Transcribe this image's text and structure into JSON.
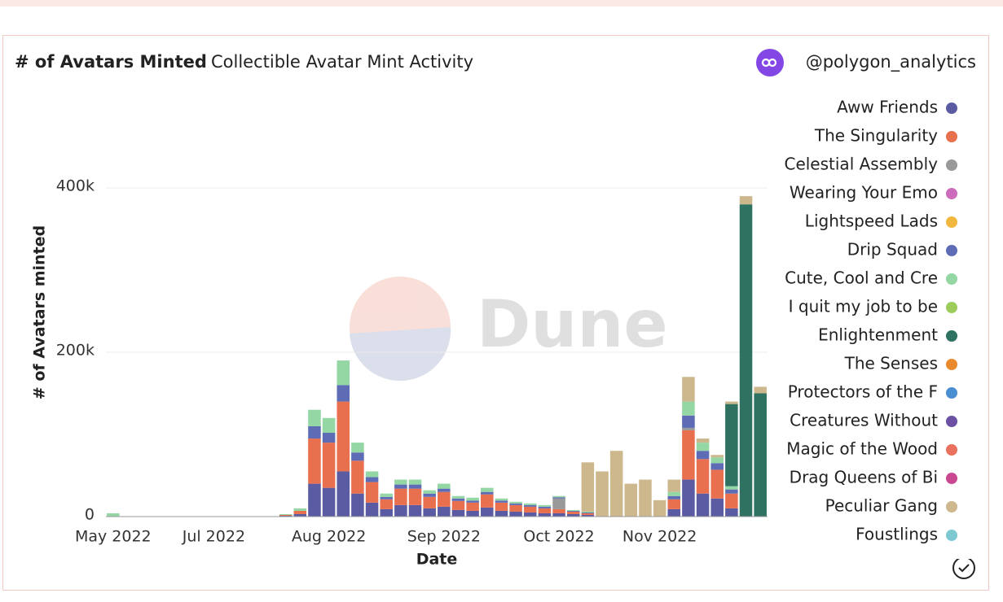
{
  "chart_data": {
    "type": "stacked_bar",
    "title": "# of Avatars Minted",
    "subtitle": "Collectible Avatar Mint Activity",
    "author": "@polygon_analytics",
    "watermark": "Dune",
    "x_label": "Date",
    "y_label": "# of Avatars minted",
    "categories": [
      "May 2022",
      null,
      null,
      null,
      null,
      null,
      null,
      "Jul 2022",
      null,
      null,
      null,
      null,
      null,
      null,
      null,
      "Aug 2022",
      null,
      null,
      null,
      null,
      null,
      null,
      null,
      "Sep 2022",
      null,
      null,
      null,
      null,
      null,
      null,
      null,
      "Oct 2022",
      null,
      null,
      null,
      null,
      null,
      null,
      "Nov 2022",
      null,
      null,
      null,
      null,
      null,
      null,
      null
    ],
    "ylim": [
      0,
      500000
    ],
    "yticks": [
      {
        "value": 0,
        "label": "0"
      },
      {
        "value": 200000,
        "label": "200k"
      },
      {
        "value": 400000,
        "label": "400k"
      }
    ],
    "grid": true,
    "legend": "right",
    "series": [
      {
        "name": "Aww Friends",
        "color": "#5b5ba3",
        "values": [
          0,
          0,
          0,
          0,
          0,
          0,
          0,
          0,
          0,
          0,
          0,
          0,
          1000,
          3000,
          40000,
          35000,
          55000,
          28000,
          17000,
          9000,
          14000,
          14000,
          10000,
          12000,
          8000,
          7000,
          11000,
          7000,
          6000,
          5000,
          4000,
          4000,
          3000,
          2000,
          0,
          0,
          0,
          0,
          0,
          9000,
          45000,
          28000,
          22000,
          10000,
          0,
          0
        ]
      },
      {
        "name": "The Singularity",
        "color": "#e8704f",
        "values": [
          0,
          0,
          0,
          0,
          0,
          0,
          0,
          0,
          0,
          0,
          0,
          0,
          1000,
          4000,
          55000,
          55000,
          85000,
          40000,
          25000,
          12000,
          20000,
          20000,
          14000,
          18000,
          11000,
          10000,
          16000,
          10000,
          8000,
          7000,
          6000,
          5000,
          3000,
          2000,
          0,
          0,
          0,
          0,
          0,
          12000,
          60000,
          42000,
          35000,
          18000,
          0,
          0
        ]
      },
      {
        "name": "Celestial Assembly",
        "color": "#999999",
        "values": [
          0,
          0,
          0,
          0,
          0,
          0,
          0,
          0,
          0,
          0,
          0,
          0,
          0,
          0,
          0,
          0,
          0,
          0,
          0,
          0,
          0,
          0,
          0,
          0,
          0,
          0,
          0,
          0,
          0,
          0,
          0,
          13000,
          0,
          0,
          0,
          0,
          0,
          0,
          0,
          0,
          3000,
          0,
          0,
          0,
          0,
          0
        ]
      },
      {
        "name": "Wearing Your Emo",
        "color": "#cc6cbd",
        "values": [
          0,
          0,
          0,
          0,
          0,
          0,
          0,
          0,
          0,
          0,
          0,
          0,
          0,
          0,
          0,
          0,
          0,
          0,
          0,
          0,
          0,
          0,
          0,
          0,
          0,
          0,
          0,
          0,
          0,
          0,
          0,
          0,
          0,
          0,
          0,
          0,
          0,
          0,
          0,
          0,
          0,
          0,
          0,
          0,
          0,
          0
        ]
      },
      {
        "name": "Lightspeed Lads",
        "color": "#f0b83f",
        "values": [
          0,
          0,
          0,
          0,
          0,
          0,
          0,
          0,
          0,
          0,
          0,
          0,
          0,
          0,
          0,
          0,
          0,
          0,
          0,
          0,
          0,
          0,
          0,
          0,
          0,
          0,
          0,
          0,
          0,
          0,
          0,
          0,
          0,
          0,
          0,
          0,
          0,
          0,
          0,
          0,
          0,
          0,
          0,
          0,
          0,
          0
        ]
      },
      {
        "name": "Drip Squad",
        "color": "#5d6cb5",
        "values": [
          0,
          0,
          0,
          0,
          0,
          0,
          0,
          0,
          0,
          0,
          0,
          0,
          0,
          0,
          15000,
          12000,
          20000,
          10000,
          6000,
          3000,
          5000,
          5000,
          4000,
          4000,
          3000,
          2500,
          3000,
          2500,
          2000,
          2000,
          2000,
          1500,
          1000,
          1000,
          0,
          0,
          0,
          0,
          0,
          4000,
          15000,
          10000,
          8000,
          5000,
          0,
          0
        ]
      },
      {
        "name": "Cute, Cool and Cre",
        "color": "#94d6a4",
        "values": [
          4000,
          0,
          0,
          0,
          0,
          0,
          0,
          0,
          0,
          0,
          0,
          0,
          1000,
          3000,
          20000,
          18000,
          30000,
          12000,
          7000,
          4000,
          6000,
          6000,
          4000,
          6000,
          3000,
          3500,
          5000,
          2500,
          2000,
          2000,
          2000,
          1500,
          1000,
          1000,
          0,
          0,
          0,
          0,
          0,
          5000,
          17000,
          10000,
          7000,
          4000,
          0,
          0
        ]
      },
      {
        "name": "I quit my job to be",
        "color": "#9ccd5b",
        "values": [
          0,
          0,
          0,
          0,
          0,
          0,
          0,
          0,
          0,
          0,
          0,
          0,
          0,
          0,
          0,
          0,
          0,
          0,
          0,
          0,
          0,
          0,
          0,
          0,
          0,
          0,
          0,
          0,
          0,
          0,
          0,
          0,
          0,
          0,
          0,
          0,
          0,
          0,
          0,
          0,
          0,
          0,
          0,
          0,
          0,
          0
        ]
      },
      {
        "name": "Enlightenment",
        "color": "#2f7262",
        "values": [
          0,
          0,
          0,
          0,
          0,
          0,
          0,
          0,
          0,
          0,
          0,
          0,
          0,
          0,
          0,
          0,
          0,
          0,
          0,
          0,
          0,
          0,
          0,
          0,
          0,
          0,
          0,
          0,
          0,
          0,
          0,
          0,
          0,
          0,
          0,
          0,
          0,
          0,
          0,
          0,
          0,
          0,
          0,
          100000,
          380000,
          150000
        ]
      },
      {
        "name": "The Senses",
        "color": "#e98a2e",
        "values": [
          0,
          0,
          0,
          0,
          0,
          0,
          0,
          0,
          0,
          0,
          0,
          0,
          0,
          0,
          0,
          0,
          0,
          0,
          0,
          0,
          0,
          0,
          0,
          0,
          0,
          0,
          0,
          0,
          0,
          0,
          0,
          0,
          0,
          0,
          0,
          0,
          0,
          0,
          0,
          0,
          0,
          0,
          0,
          0,
          0,
          0
        ]
      },
      {
        "name": "Protectors of the F",
        "color": "#4a8fd2",
        "values": [
          0,
          0,
          0,
          0,
          0,
          0,
          0,
          0,
          0,
          0,
          0,
          0,
          0,
          0,
          0,
          0,
          0,
          0,
          0,
          0,
          0,
          0,
          0,
          0,
          0,
          0,
          0,
          0,
          0,
          0,
          0,
          0,
          0,
          0,
          0,
          0,
          0,
          0,
          0,
          0,
          0,
          0,
          0,
          0,
          0,
          0
        ]
      },
      {
        "name": "Creatures Without",
        "color": "#6b50a3",
        "values": [
          0,
          0,
          0,
          0,
          0,
          0,
          0,
          0,
          0,
          0,
          0,
          0,
          0,
          0,
          0,
          0,
          0,
          0,
          0,
          0,
          0,
          0,
          0,
          0,
          0,
          0,
          0,
          0,
          0,
          0,
          0,
          0,
          0,
          0,
          0,
          0,
          0,
          0,
          0,
          0,
          0,
          0,
          0,
          0,
          0,
          0
        ]
      },
      {
        "name": "Magic of the Wood",
        "color": "#e8725f",
        "values": [
          0,
          0,
          0,
          0,
          0,
          0,
          0,
          0,
          0,
          0,
          0,
          0,
          0,
          0,
          0,
          0,
          0,
          0,
          0,
          0,
          0,
          0,
          0,
          0,
          0,
          0,
          0,
          0,
          0,
          0,
          0,
          0,
          0,
          0,
          0,
          0,
          0,
          0,
          0,
          0,
          0,
          0,
          0,
          0,
          0,
          0
        ]
      },
      {
        "name": "Drag Queens of Bi",
        "color": "#c9488f",
        "values": [
          0,
          0,
          0,
          0,
          0,
          0,
          0,
          0,
          0,
          0,
          0,
          0,
          0,
          0,
          0,
          0,
          0,
          0,
          0,
          0,
          0,
          0,
          0,
          0,
          0,
          0,
          0,
          0,
          0,
          0,
          0,
          0,
          0,
          0,
          0,
          0,
          0,
          0,
          0,
          0,
          0,
          0,
          0,
          0,
          0,
          0
        ]
      },
      {
        "name": "Peculiar Gang",
        "color": "#cdb88e",
        "values": [
          0,
          0,
          0,
          0,
          0,
          0,
          0,
          0,
          0,
          0,
          0,
          0,
          0,
          0,
          0,
          0,
          0,
          0,
          0,
          0,
          0,
          0,
          0,
          0,
          0,
          0,
          0,
          0,
          0,
          0,
          0,
          0,
          0,
          60000,
          55000,
          80000,
          40000,
          45000,
          20000,
          15000,
          30000,
          5000,
          3000,
          3000,
          10000,
          8000
        ]
      },
      {
        "name": "Foustlings",
        "color": "#7cc9d2",
        "values": [
          0,
          0,
          0,
          0,
          0,
          0,
          0,
          0,
          0,
          0,
          0,
          0,
          0,
          0,
          0,
          0,
          0,
          0,
          0,
          0,
          0,
          0,
          0,
          0,
          0,
          0,
          0,
          0,
          0,
          0,
          0,
          0,
          0,
          0,
          0,
          0,
          0,
          0,
          0,
          0,
          0,
          0,
          0,
          0,
          0,
          0
        ]
      }
    ]
  }
}
